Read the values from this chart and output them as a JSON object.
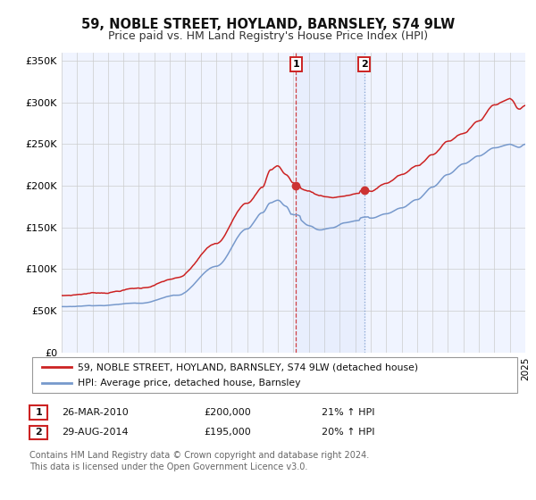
{
  "title": "59, NOBLE STREET, HOYLAND, BARNSLEY, S74 9LW",
  "subtitle": "Price paid vs. HM Land Registry's House Price Index (HPI)",
  "title_fontsize": 10.5,
  "subtitle_fontsize": 9,
  "ylabel_ticks": [
    "£0",
    "£50K",
    "£100K",
    "£150K",
    "£200K",
    "£250K",
    "£300K",
    "£350K"
  ],
  "ytick_vals": [
    0,
    50000,
    100000,
    150000,
    200000,
    250000,
    300000,
    350000
  ],
  "ylim": [
    0,
    360000
  ],
  "background_color": "#ffffff",
  "plot_bg_color": "#f0f4ff",
  "grid_color": "#cccccc",
  "hpi_line_color": "#7799cc",
  "price_line_color": "#cc2222",
  "sale1_price": 200000,
  "sale2_price": 195000,
  "sale1_date_str": "26-MAR-2010",
  "sale2_date_str": "29-AUG-2014",
  "sale1_pct": "21% ↑ HPI",
  "sale2_pct": "20% ↑ HPI",
  "legend_price_label": "59, NOBLE STREET, HOYLAND, BARNSLEY, S74 9LW (detached house)",
  "legend_hpi_label": "HPI: Average price, detached house, Barnsley",
  "footer": "Contains HM Land Registry data © Crown copyright and database right 2024.\nThis data is licensed under the Open Government Licence v3.0.",
  "footer_fontsize": 7.0
}
